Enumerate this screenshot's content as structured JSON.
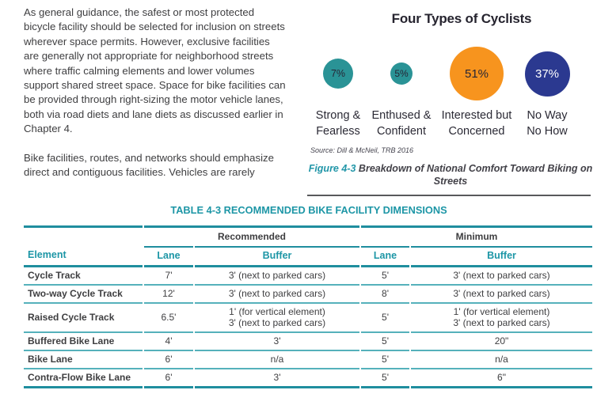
{
  "article": {
    "paragraph1_lines": [
      "As general guidance, the safest or most protected",
      "bicycle facility should be selected for inclusion on streets",
      "wherever space permits. However, exclusive facilities",
      "are generally not appropriate for neighborhood streets",
      "where traffic calming elements and lower volumes",
      "support shared street space. Space for bike facilities can",
      "be provided through right-sizing the motor vehicle lanes,",
      "both via road diets and lane diets as discussed earlier in",
      "Chapter 4."
    ],
    "paragraph2_lines": [
      "Bike facilities, routes, and networks should emphasize",
      "direct and contiguous facilities. Vehicles are rarely"
    ]
  },
  "chart_data": {
    "type": "bubble",
    "title": "Four Types of Cyclists",
    "categories": [
      "Strong & Fearless",
      "Enthused & Confident",
      "Interested but Concerned",
      "No Way No How"
    ],
    "category_lines": [
      [
        "Strong &",
        "Fearless"
      ],
      [
        "Enthused &",
        "Confident"
      ],
      [
        "Interested but",
        "Concerned"
      ],
      [
        "No Way",
        "No How"
      ]
    ],
    "values": [
      7,
      5,
      51,
      37
    ],
    "unit": "%",
    "value_labels": [
      "7%",
      "5%",
      "51%",
      "37%"
    ],
    "colors": [
      "#2a9396",
      "#2a9396",
      "#f7941e",
      "#2b3990"
    ],
    "source": "Source: Dill & McNeil, TRB 2016"
  },
  "figure": {
    "caption_label": "Figure 4-3",
    "caption_text": "Breakdown of National Comfort Toward Biking on Streets"
  },
  "table": {
    "title": "TABLE 4-3 RECOMMENDED BIKE FACILITY DIMENSIONS",
    "group_headers": {
      "recommended": "Recommended",
      "minimum": "Minimum"
    },
    "column_headers": {
      "element": "Element",
      "lane1": "Lane",
      "buffer1": "Buffer",
      "lane2": "Lane",
      "buffer2": "Buffer"
    },
    "rows": [
      {
        "element": "Cycle Track",
        "rec_lane": "7'",
        "rec_buffer": "3' (next to parked cars)",
        "min_lane": "5'",
        "min_buffer": "3' (next to parked cars)"
      },
      {
        "element": "Two-way Cycle Track",
        "rec_lane": "12'",
        "rec_buffer": "3' (next to parked cars)",
        "min_lane": "8'",
        "min_buffer": "3' (next to parked cars)"
      },
      {
        "element": "Raised Cycle Track",
        "rec_lane": "6.5'",
        "rec_buffer": [
          "1' (for vertical element)",
          "3' (next to parked cars)"
        ],
        "min_lane": "5'",
        "min_buffer": [
          "1' (for vertical element)",
          "3' (next to parked cars)"
        ]
      },
      {
        "element": "Buffered Bike Lane",
        "rec_lane": "4'",
        "rec_buffer": "3'",
        "min_lane": "5'",
        "min_buffer": "20\""
      },
      {
        "element": "Bike Lane",
        "rec_lane": "6'",
        "rec_buffer": "n/a",
        "min_lane": "5'",
        "min_buffer": "n/a"
      },
      {
        "element": "Contra-Flow Bike Lane",
        "rec_lane": "6'",
        "rec_buffer": "3'",
        "min_lane": "5'",
        "min_buffer": "6\""
      }
    ]
  }
}
